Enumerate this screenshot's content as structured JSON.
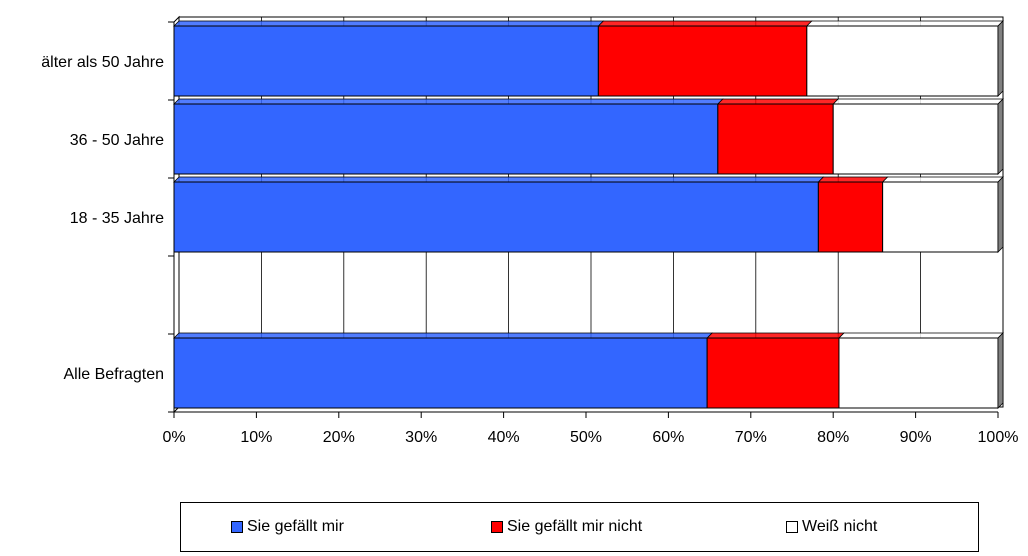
{
  "chart_data": {
    "type": "bar",
    "orientation": "horizontal",
    "stacked": "percent",
    "categories": [
      "älter als 50 Jahre",
      "36 - 50 Jahre",
      "18 - 35 Jahre",
      "",
      "Alle Befragten"
    ],
    "series": [
      {
        "name": "Sie gefällt mir",
        "color": "#3366ff",
        "values": [
          51.5,
          66,
          78.2,
          null,
          64.7
        ]
      },
      {
        "name": "Sie gefällt mir nicht",
        "color": "#ff0000",
        "values": [
          25.3,
          14,
          7.8,
          null,
          16
        ]
      },
      {
        "name": "Weiß nicht",
        "color": "#ffffff",
        "values": [
          23.2,
          20,
          14,
          null,
          19.3
        ]
      }
    ],
    "xticks": [
      "0%",
      "10%",
      "20%",
      "30%",
      "40%",
      "50%",
      "60%",
      "70%",
      "80%",
      "90%",
      "100%"
    ],
    "xlim": [
      0,
      100
    ],
    "grid": true,
    "legend_position": "bottom"
  }
}
